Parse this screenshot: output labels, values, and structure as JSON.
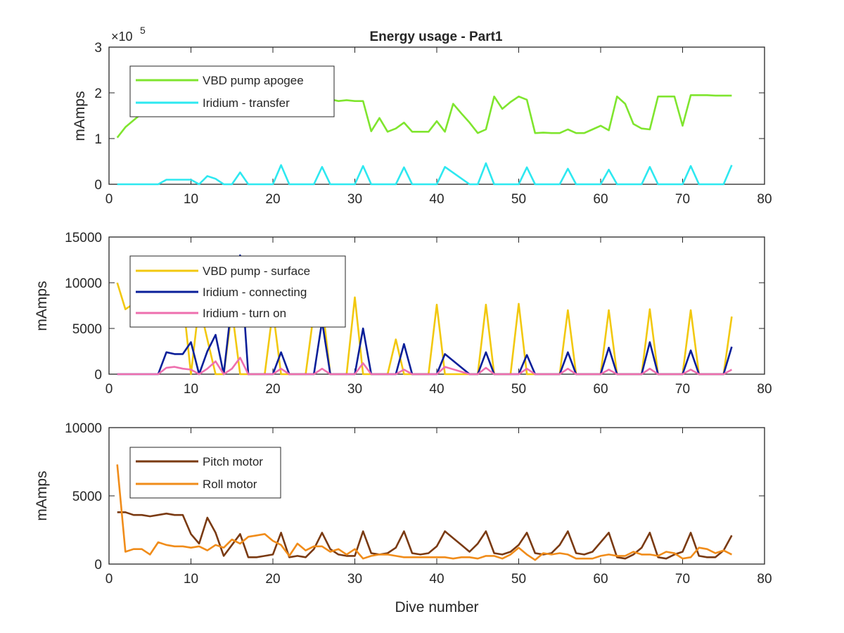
{
  "title": "Energy usage - Part1",
  "xlabel": "Dive number",
  "chart_data": [
    {
      "type": "line",
      "title": "Energy usage - Part1",
      "ylabel": "mAmps",
      "xlim": [
        0,
        80
      ],
      "ylim": [
        0,
        3
      ],
      "y_multiplier_label": "×10",
      "y_multiplier_exp": "5",
      "xticks": [
        "0",
        "10",
        "20",
        "30",
        "40",
        "50",
        "60",
        "70",
        "80"
      ],
      "yticks": [
        "0",
        "1",
        "2",
        "3"
      ],
      "legend_position": "top-left",
      "series": [
        {
          "name": "VBD pump apogee",
          "color": "#7fe52e",
          "x": [
            1,
            2,
            3,
            4,
            5,
            6,
            7,
            8,
            9,
            10,
            11,
            12,
            13,
            14,
            15,
            16,
            17,
            18,
            19,
            20,
            21,
            22,
            23,
            24,
            25,
            26,
            27,
            28,
            29,
            30,
            31,
            32,
            33,
            34,
            35,
            36,
            37,
            38,
            39,
            40,
            41,
            42,
            43,
            44,
            45,
            46,
            47,
            48,
            49,
            50,
            51,
            52,
            53,
            54,
            55,
            56,
            57,
            58,
            59,
            60,
            61,
            62,
            63,
            64,
            65,
            66,
            67,
            68,
            69,
            70,
            71,
            72,
            73,
            74,
            75,
            76
          ],
          "values": [
            1.02,
            1.25,
            1.4,
            1.55,
            1.62,
            1.68,
            1.72,
            1.76,
            1.8,
            1.82,
            1.84,
            1.85,
            1.86,
            1.86,
            1.86,
            1.86,
            1.86,
            1.86,
            1.86,
            1.86,
            1.86,
            1.86,
            1.86,
            1.86,
            1.86,
            1.86,
            1.86,
            1.82,
            1.84,
            1.82,
            1.82,
            1.16,
            1.45,
            1.15,
            1.22,
            1.35,
            1.15,
            1.15,
            1.15,
            1.38,
            1.15,
            1.76,
            1.55,
            1.35,
            1.12,
            1.2,
            1.92,
            1.65,
            1.8,
            1.92,
            1.85,
            1.12,
            1.13,
            1.12,
            1.12,
            1.2,
            1.12,
            1.12,
            1.2,
            1.28,
            1.18,
            1.92,
            1.76,
            1.32,
            1.22,
            1.2,
            1.92,
            1.92,
            1.92,
            1.28,
            1.95,
            1.95,
            1.95,
            1.94,
            1.94,
            1.94
          ]
        },
        {
          "name": "Iridium - transfer",
          "color": "#2ee8f0",
          "x": [
            1,
            6,
            7,
            8,
            9,
            10,
            11,
            12,
            13,
            14,
            15,
            16,
            17,
            20,
            21,
            22,
            25,
            26,
            27,
            30,
            31,
            32,
            35,
            36,
            37,
            40,
            41,
            44,
            45,
            46,
            47,
            50,
            51,
            52,
            55,
            56,
            57,
            60,
            61,
            62,
            65,
            66,
            67,
            70,
            71,
            72,
            75,
            76
          ],
          "values": [
            0,
            0,
            0.1,
            0.1,
            0.1,
            0.1,
            0,
            0.18,
            0.12,
            0,
            0,
            0.26,
            0,
            0,
            0.42,
            0,
            0,
            0.38,
            0,
            0,
            0.4,
            0,
            0,
            0.37,
            0,
            0,
            0.38,
            0,
            0,
            0.46,
            0,
            0,
            0.37,
            0,
            0,
            0.34,
            0,
            0,
            0.32,
            0,
            0,
            0.38,
            0,
            0,
            0.4,
            0,
            0,
            0.42
          ]
        }
      ]
    },
    {
      "type": "line",
      "ylabel": "mAmps",
      "xlim": [
        0,
        80
      ],
      "ylim": [
        0,
        15000
      ],
      "xticks": [
        "0",
        "10",
        "20",
        "30",
        "40",
        "50",
        "60",
        "70",
        "80"
      ],
      "yticks": [
        "0",
        "5000",
        "10000",
        "15000"
      ],
      "legend_position": "top-left",
      "series": [
        {
          "name": "VBD pump - surface",
          "color": "#f2c80f",
          "x": [
            1,
            2,
            3,
            4,
            5,
            6,
            7,
            8,
            9,
            10,
            11,
            12,
            13,
            14,
            15,
            16,
            17,
            18,
            19,
            20,
            21,
            22,
            23,
            24,
            25,
            26,
            27,
            28,
            29,
            30,
            31,
            32,
            33,
            34,
            35,
            36,
            37,
            38,
            39,
            40,
            41,
            42,
            43,
            44,
            45,
            46,
            47,
            48,
            49,
            50,
            51,
            52,
            53,
            54,
            55,
            56,
            57,
            58,
            59,
            60,
            61,
            62,
            63,
            64,
            65,
            66,
            67,
            68,
            69,
            70,
            71,
            72,
            73,
            74,
            75,
            76
          ],
          "values": [
            10000,
            7100,
            7700,
            8000,
            8200,
            8200,
            8300,
            8300,
            8300,
            0,
            7700,
            3800,
            0,
            0,
            7000,
            0,
            0,
            0,
            0,
            7000,
            0,
            0,
            0,
            0,
            6800,
            7800,
            0,
            0,
            0,
            8400,
            0,
            0,
            0,
            0,
            3800,
            0,
            0,
            0,
            0,
            7600,
            0,
            0,
            0,
            0,
            0,
            7600,
            0,
            0,
            0,
            7700,
            0,
            0,
            0,
            0,
            0,
            7000,
            0,
            0,
            0,
            0,
            7000,
            0,
            0,
            0,
            0,
            7100,
            0,
            0,
            0,
            0,
            7000,
            0,
            0,
            0,
            0,
            6300
          ]
        },
        {
          "name": "Iridium - connecting",
          "color": "#0a1f99",
          "x": [
            1,
            6,
            7,
            8,
            9,
            10,
            11,
            12,
            13,
            14,
            15,
            16,
            17,
            20,
            21,
            22,
            25,
            26,
            27,
            30,
            31,
            32,
            35,
            36,
            37,
            40,
            41,
            44,
            45,
            46,
            47,
            50,
            51,
            52,
            55,
            56,
            57,
            60,
            61,
            62,
            65,
            66,
            67,
            70,
            71,
            72,
            75,
            76
          ],
          "values": [
            0,
            0,
            2400,
            2200,
            2200,
            3500,
            0,
            2500,
            4300,
            0,
            8000,
            13000,
            0,
            0,
            2400,
            0,
            0,
            5800,
            0,
            0,
            5000,
            0,
            0,
            3300,
            0,
            0,
            2200,
            0,
            0,
            2400,
            0,
            0,
            2100,
            0,
            0,
            2400,
            0,
            0,
            2900,
            0,
            0,
            3500,
            0,
            0,
            2600,
            0,
            0,
            3000
          ]
        },
        {
          "name": "Iridium - turn on",
          "color": "#ee6fae",
          "x": [
            1,
            6,
            7,
            8,
            9,
            10,
            11,
            12,
            13,
            14,
            15,
            16,
            17,
            20,
            21,
            22,
            25,
            26,
            27,
            30,
            31,
            32,
            35,
            36,
            37,
            40,
            41,
            44,
            45,
            46,
            47,
            50,
            51,
            52,
            55,
            56,
            57,
            60,
            61,
            62,
            65,
            66,
            67,
            70,
            71,
            72,
            75,
            76
          ],
          "values": [
            0,
            0,
            700,
            800,
            600,
            500,
            0,
            600,
            1400,
            0,
            600,
            1800,
            0,
            0,
            600,
            0,
            0,
            600,
            0,
            0,
            1200,
            0,
            0,
            500,
            0,
            0,
            800,
            0,
            0,
            700,
            0,
            0,
            600,
            0,
            0,
            600,
            0,
            0,
            500,
            0,
            0,
            600,
            0,
            0,
            500,
            0,
            0,
            500
          ]
        }
      ]
    },
    {
      "type": "line",
      "ylabel": "mAmps",
      "xlabel": "Dive number",
      "xlim": [
        0,
        80
      ],
      "ylim": [
        0,
        10000
      ],
      "xticks": [
        "0",
        "10",
        "20",
        "30",
        "40",
        "50",
        "60",
        "70",
        "80"
      ],
      "yticks": [
        "0",
        "5000",
        "10000"
      ],
      "legend_position": "top-left",
      "series": [
        {
          "name": "Pitch motor",
          "color": "#7a3a12",
          "x": [
            1,
            2,
            3,
            4,
            5,
            6,
            7,
            8,
            9,
            10,
            11,
            12,
            13,
            14,
            15,
            16,
            17,
            18,
            19,
            20,
            21,
            22,
            23,
            24,
            25,
            26,
            27,
            28,
            29,
            30,
            31,
            32,
            33,
            34,
            35,
            36,
            37,
            38,
            39,
            40,
            41,
            42,
            43,
            44,
            45,
            46,
            47,
            48,
            49,
            50,
            51,
            52,
            53,
            54,
            55,
            56,
            57,
            58,
            59,
            60,
            61,
            62,
            63,
            64,
            65,
            66,
            67,
            68,
            69,
            70,
            71,
            72,
            73,
            74,
            75,
            76
          ],
          "values": [
            3800,
            3800,
            3600,
            3600,
            3500,
            3600,
            3700,
            3600,
            3600,
            2200,
            1500,
            3400,
            2300,
            600,
            1400,
            2200,
            500,
            500,
            600,
            700,
            2300,
            500,
            600,
            500,
            1100,
            2300,
            1100,
            700,
            600,
            600,
            2400,
            800,
            700,
            800,
            1200,
            2400,
            800,
            700,
            800,
            1300,
            2400,
            1900,
            1400,
            900,
            1500,
            2400,
            800,
            700,
            900,
            1400,
            2300,
            800,
            700,
            800,
            1400,
            2400,
            800,
            700,
            900,
            1600,
            2300,
            500,
            400,
            700,
            1200,
            2300,
            500,
            400,
            700,
            900,
            2300,
            600,
            500,
            500,
            1000,
            2100
          ]
        },
        {
          "name": "Roll motor",
          "color": "#f08c1a",
          "x": [
            1,
            2,
            3,
            4,
            5,
            6,
            7,
            8,
            9,
            10,
            11,
            12,
            13,
            14,
            15,
            16,
            17,
            18,
            19,
            20,
            21,
            22,
            23,
            24,
            25,
            26,
            27,
            28,
            29,
            30,
            31,
            32,
            33,
            34,
            35,
            36,
            37,
            38,
            39,
            40,
            41,
            42,
            43,
            44,
            45,
            46,
            47,
            48,
            49,
            50,
            51,
            52,
            53,
            54,
            55,
            56,
            57,
            58,
            59,
            60,
            61,
            62,
            63,
            64,
            65,
            66,
            67,
            68,
            69,
            70,
            71,
            72,
            73,
            74,
            75,
            76
          ],
          "values": [
            7300,
            900,
            1100,
            1100,
            700,
            1600,
            1400,
            1300,
            1300,
            1200,
            1300,
            1000,
            1400,
            1200,
            1800,
            1500,
            2000,
            2100,
            2200,
            1700,
            1400,
            600,
            1500,
            1000,
            1300,
            1300,
            900,
            1100,
            700,
            1100,
            400,
            600,
            700,
            700,
            600,
            500,
            500,
            500,
            500,
            500,
            500,
            400,
            500,
            500,
            400,
            600,
            600,
            400,
            700,
            1200,
            700,
            300,
            800,
            700,
            800,
            700,
            400,
            400,
            400,
            600,
            700,
            600,
            600,
            900,
            700,
            700,
            600,
            900,
            800,
            400,
            500,
            1200,
            1100,
            800,
            1000,
            700
          ]
        }
      ]
    }
  ]
}
